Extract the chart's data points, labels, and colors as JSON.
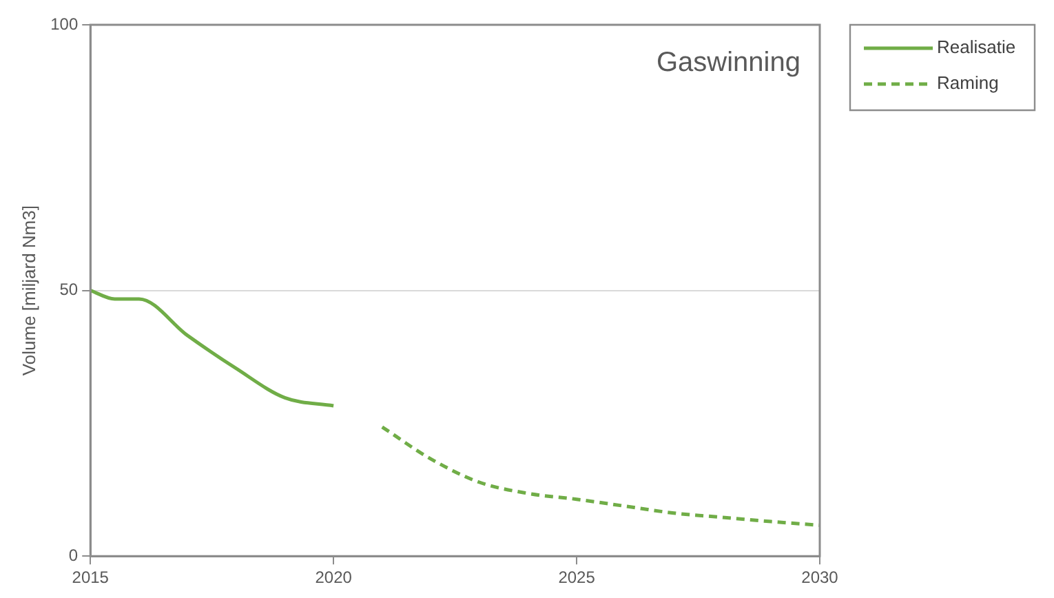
{
  "chart_data": {
    "type": "line",
    "title": "Gaswinning",
    "ylabel": "Volume [miljard Nm3]",
    "xlim": [
      2015,
      2030
    ],
    "xticks": [
      2015,
      2020,
      2025,
      2030
    ],
    "ylim": [
      0,
      100
    ],
    "yticks": [
      0,
      50,
      100
    ],
    "grid": "y",
    "legend": "right",
    "marker": "none",
    "series": [
      {
        "name": "Realisatie",
        "color": "#70ad47",
        "line_style": "solid",
        "x": [
          2015,
          2015.5,
          2016,
          2017,
          2018,
          2019,
          2020
        ],
        "values": [
          50,
          48.4,
          48.4,
          41.5,
          35.3,
          29.8,
          28.3
        ]
      },
      {
        "name": "Raming",
        "color": "#70ad47",
        "line_style": "dashed",
        "x": [
          2021,
          2022,
          2023,
          2024,
          2025,
          2026,
          2027,
          2028,
          2029,
          2030
        ],
        "values": [
          24.3,
          18.3,
          13.9,
          11.8,
          10.7,
          9.4,
          8.1,
          7.3,
          6.5,
          5.8
        ]
      }
    ]
  }
}
